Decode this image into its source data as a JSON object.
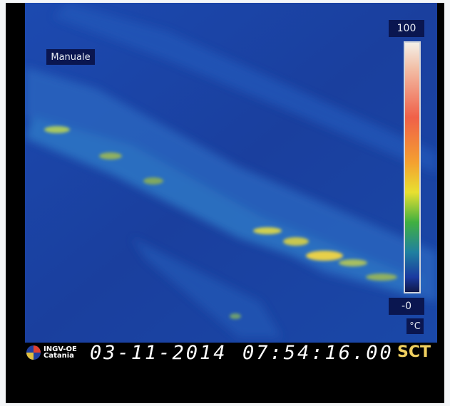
{
  "overlay": {
    "mode": "Manuale",
    "scale_max": "100",
    "scale_min": "-0",
    "unit": "°C"
  },
  "footer": {
    "org": "INGV-OE",
    "city": "Catania",
    "date": "03-11-2014",
    "time": "07:54:16.00",
    "camera": "SCT"
  }
}
